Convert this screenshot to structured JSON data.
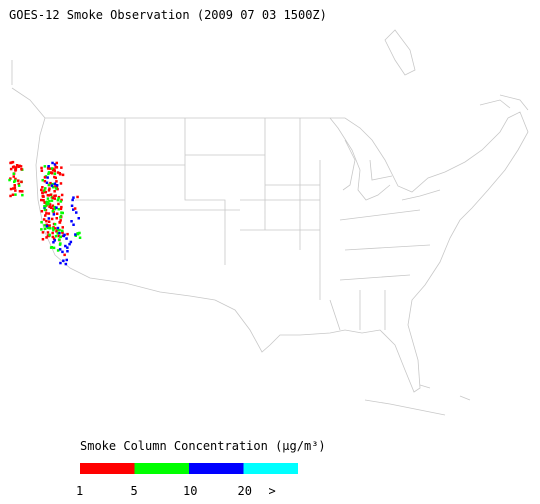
{
  "header": {
    "title": "GOES-12 Smoke Observation (2009 07 03  1500Z)"
  },
  "legend": {
    "title": "Smoke Column Concentration (μg/m³)",
    "ticks": [
      1,
      5,
      10,
      20
    ],
    "overflow_label": ">",
    "colors": [
      "#ff0000",
      "#00ff00",
      "#0000ff",
      "#00ffff"
    ]
  }
}
